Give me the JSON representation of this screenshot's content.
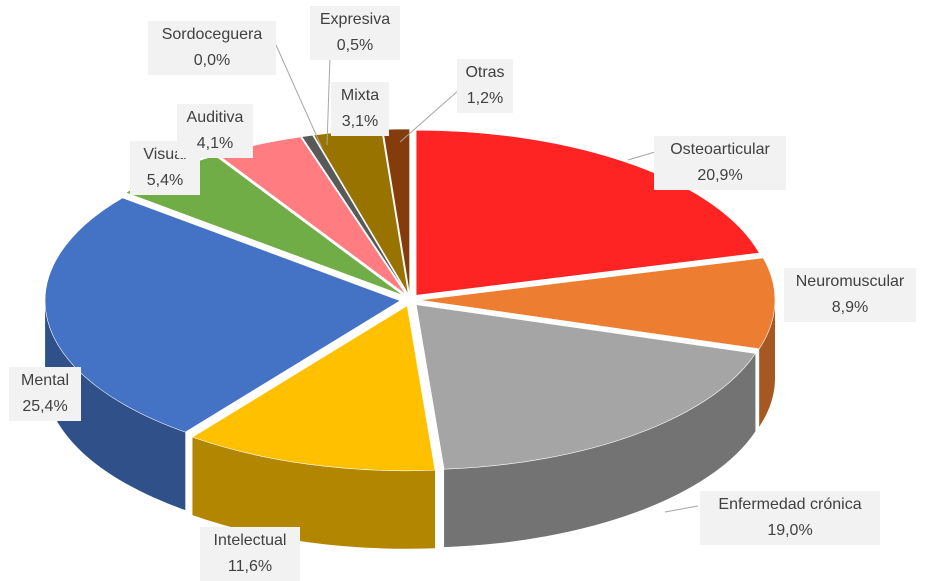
{
  "chart_data": {
    "type": "pie3d",
    "categories": [
      "Osteoarticular",
      "Neuromuscular",
      "Enfermedad crónica",
      "Intelectual",
      "Mental",
      "Visual",
      "Auditiva",
      "Sordoceguera",
      "Expresiva",
      "Mixta",
      "Otras"
    ],
    "values": [
      20.9,
      8.9,
      19.0,
      11.6,
      25.4,
      5.4,
      4.1,
      0.0,
      0.5,
      3.1,
      1.2
    ],
    "value_labels": [
      "20,9%",
      "8,9%",
      "19,0%",
      "11,6%",
      "25,4%",
      "5,4%",
      "4,1%",
      "0,0%",
      "0,5%",
      "3,1%",
      "1,2%"
    ],
    "colors": [
      "#ff2424",
      "#ed7d31",
      "#a5a5a5",
      "#ffc000",
      "#4472c4",
      "#70ad47",
      "#ff7c80",
      "#7f7f7f",
      "#595959",
      "#997300",
      "#843c0c"
    ]
  }
}
